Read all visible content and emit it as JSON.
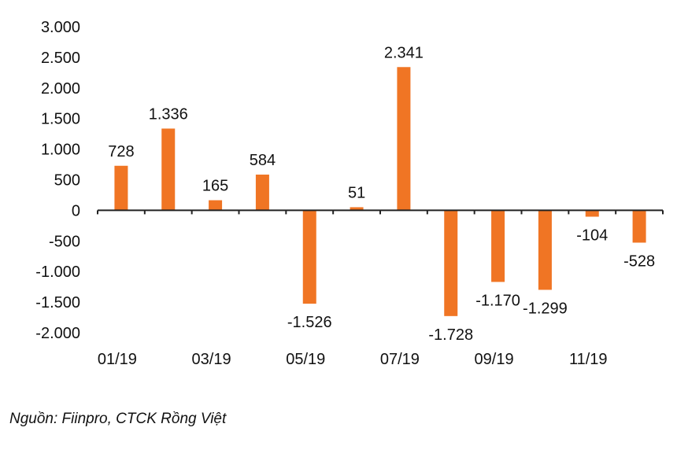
{
  "colors": {
    "bar": "#F07524",
    "text": "#111111",
    "axis": "#222222"
  },
  "chart_data": {
    "type": "bar",
    "categories": [
      "01/19",
      "02/19",
      "03/19",
      "04/19",
      "05/19",
      "06/19",
      "07/19",
      "08/19",
      "09/19",
      "10/19",
      "11/19",
      "12/19"
    ],
    "x_tick_labels": [
      "01/19",
      "03/19",
      "05/19",
      "07/19",
      "09/19",
      "11/19"
    ],
    "values": [
      728,
      1336,
      165,
      584,
      -1526,
      51,
      2341,
      -1728,
      -1170,
      -1299,
      -104,
      -528
    ],
    "data_labels": [
      "728",
      "1.336",
      "165",
      "584",
      "-1.526",
      "51",
      "2.341",
      "-1.728",
      "-1.170",
      "-1.299",
      "-104",
      "-528"
    ],
    "y_ticks": [
      3000,
      2500,
      2000,
      1500,
      1000,
      500,
      0,
      -500,
      -1000,
      -1500,
      -2000
    ],
    "y_tick_labels": [
      "3.000",
      "2.500",
      "2.000",
      "1.500",
      "1.000",
      "500",
      "0",
      "-500",
      "-1.000",
      "-1.500",
      "-2.000"
    ],
    "ylim": [
      -2000,
      3000
    ],
    "grid": false,
    "legend": "none",
    "title": "",
    "xlabel": "",
    "ylabel": ""
  },
  "source": "Nguồn: Fiinpro, CTCK Rồng Việt"
}
